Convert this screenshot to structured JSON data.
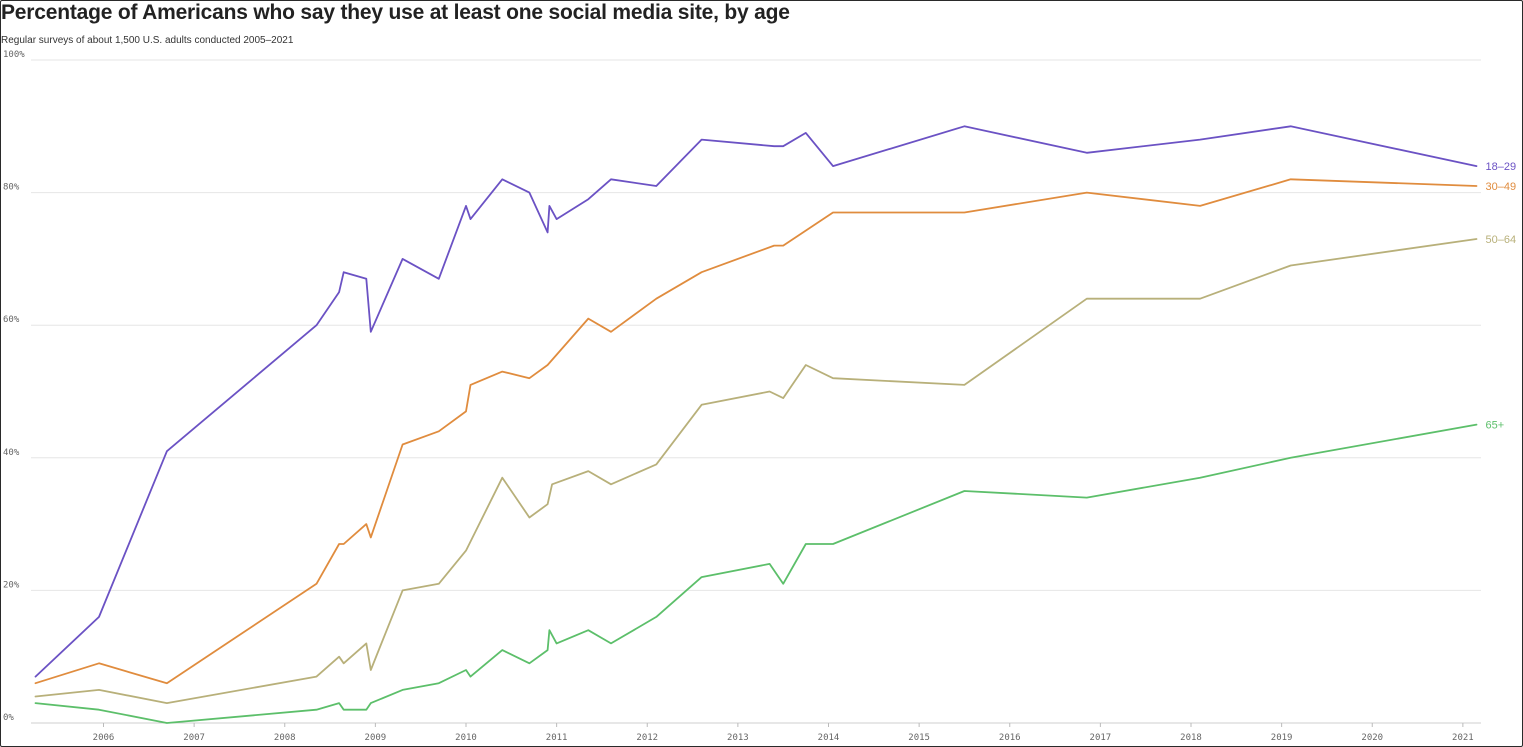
{
  "chart_data": {
    "type": "line",
    "title": "Percentage of Americans who say they use at least one social media site, by age",
    "subtitle": "Regular surveys of about 1,500 U.S. adults conducted 2005–2021",
    "xlabel": "",
    "ylabel": "",
    "xlim": [
      2005.2,
      2021.2
    ],
    "ylim": [
      0,
      100
    ],
    "x_ticks": [
      2006,
      2007,
      2008,
      2009,
      2010,
      2011,
      2012,
      2013,
      2014,
      2015,
      2016,
      2017,
      2018,
      2019,
      2020,
      2021
    ],
    "x_tick_labels": [
      "2006",
      "2007",
      "2008",
      "2009",
      "2010",
      "2011",
      "2012",
      "2013",
      "2014",
      "2015",
      "2016",
      "2017",
      "2018",
      "2019",
      "2020",
      "2021"
    ],
    "y_ticks": [
      0,
      20,
      40,
      60,
      80,
      100
    ],
    "y_tick_labels": [
      "0%",
      "20%",
      "40%",
      "60%",
      "80%",
      "100%"
    ],
    "grid": true,
    "legend": "direct labels at right end of lines",
    "series": [
      {
        "name": "18–29",
        "color": "#6b52c4",
        "points": [
          [
            2005.25,
            7
          ],
          [
            2005.95,
            16
          ],
          [
            2006.7,
            41
          ],
          [
            2008.35,
            60
          ],
          [
            2008.6,
            65
          ],
          [
            2008.65,
            68
          ],
          [
            2008.9,
            67
          ],
          [
            2008.95,
            59
          ],
          [
            2009.3,
            70
          ],
          [
            2009.7,
            67
          ],
          [
            2010.0,
            78
          ],
          [
            2010.05,
            76
          ],
          [
            2010.4,
            82
          ],
          [
            2010.7,
            80
          ],
          [
            2010.9,
            74
          ],
          [
            2010.92,
            78
          ],
          [
            2011.0,
            76
          ],
          [
            2011.35,
            79
          ],
          [
            2011.6,
            82
          ],
          [
            2012.1,
            81
          ],
          [
            2012.6,
            88
          ],
          [
            2013.4,
            87
          ],
          [
            2013.5,
            87
          ],
          [
            2013.75,
            89
          ],
          [
            2014.05,
            84
          ],
          [
            2015.5,
            90
          ],
          [
            2016.85,
            86
          ],
          [
            2018.1,
            88
          ],
          [
            2019.1,
            90
          ],
          [
            2021.15,
            84
          ]
        ]
      },
      {
        "name": "30–49",
        "color": "#e08c3e",
        "points": [
          [
            2005.25,
            6
          ],
          [
            2005.95,
            9
          ],
          [
            2006.7,
            6
          ],
          [
            2008.35,
            21
          ],
          [
            2008.6,
            27
          ],
          [
            2008.65,
            27
          ],
          [
            2008.9,
            30
          ],
          [
            2008.95,
            28
          ],
          [
            2009.3,
            42
          ],
          [
            2009.7,
            44
          ],
          [
            2010.0,
            47
          ],
          [
            2010.05,
            51
          ],
          [
            2010.4,
            53
          ],
          [
            2010.7,
            52
          ],
          [
            2010.9,
            54
          ],
          [
            2011.35,
            61
          ],
          [
            2011.6,
            59
          ],
          [
            2012.1,
            64
          ],
          [
            2012.6,
            68
          ],
          [
            2013.4,
            72
          ],
          [
            2013.5,
            72
          ],
          [
            2014.05,
            77
          ],
          [
            2015.5,
            77
          ],
          [
            2016.85,
            80
          ],
          [
            2018.1,
            78
          ],
          [
            2019.1,
            82
          ],
          [
            2021.15,
            81
          ]
        ]
      },
      {
        "name": "50–64",
        "color": "#b8b07a",
        "points": [
          [
            2005.25,
            4
          ],
          [
            2005.95,
            5
          ],
          [
            2006.7,
            3
          ],
          [
            2008.35,
            7
          ],
          [
            2008.6,
            10
          ],
          [
            2008.65,
            9
          ],
          [
            2008.9,
            12
          ],
          [
            2008.95,
            8
          ],
          [
            2009.3,
            20
          ],
          [
            2009.7,
            21
          ],
          [
            2010.0,
            26
          ],
          [
            2010.4,
            37
          ],
          [
            2010.7,
            31
          ],
          [
            2010.9,
            33
          ],
          [
            2010.95,
            36
          ],
          [
            2011.35,
            38
          ],
          [
            2011.6,
            36
          ],
          [
            2012.1,
            39
          ],
          [
            2012.6,
            48
          ],
          [
            2013.35,
            50
          ],
          [
            2013.5,
            49
          ],
          [
            2013.75,
            54
          ],
          [
            2014.05,
            52
          ],
          [
            2015.5,
            51
          ],
          [
            2016.85,
            64
          ],
          [
            2018.1,
            64
          ],
          [
            2019.1,
            69
          ],
          [
            2021.15,
            73
          ]
        ]
      },
      {
        "name": "65+",
        "color": "#5cbf6a",
        "points": [
          [
            2005.25,
            3
          ],
          [
            2005.95,
            2
          ],
          [
            2006.7,
            0
          ],
          [
            2008.35,
            2
          ],
          [
            2008.6,
            3
          ],
          [
            2008.65,
            2
          ],
          [
            2008.9,
            2
          ],
          [
            2008.95,
            3
          ],
          [
            2009.3,
            5
          ],
          [
            2009.7,
            6
          ],
          [
            2010.0,
            8
          ],
          [
            2010.05,
            7
          ],
          [
            2010.4,
            11
          ],
          [
            2010.7,
            9
          ],
          [
            2010.9,
            11
          ],
          [
            2010.92,
            14
          ],
          [
            2011.0,
            12
          ],
          [
            2011.35,
            14
          ],
          [
            2011.6,
            12
          ],
          [
            2012.1,
            16
          ],
          [
            2012.6,
            22
          ],
          [
            2013.35,
            24
          ],
          [
            2013.5,
            21
          ],
          [
            2013.75,
            27
          ],
          [
            2014.05,
            27
          ],
          [
            2015.5,
            35
          ],
          [
            2016.85,
            34
          ],
          [
            2018.1,
            37
          ],
          [
            2019.1,
            40
          ],
          [
            2021.15,
            45
          ]
        ]
      }
    ]
  }
}
